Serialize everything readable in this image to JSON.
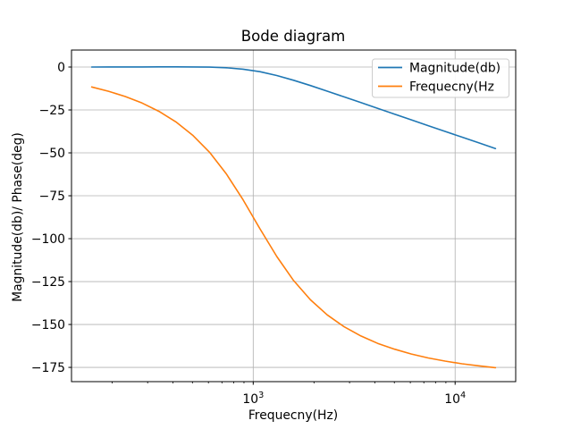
{
  "chart_data": {
    "type": "line",
    "title": "Bode diagram",
    "xlabel": "Frequecny(Hz)",
    "ylabel": "Magnitude(db)/ Phase(deg)",
    "x_scale": "log",
    "xlim": [
      125.9,
      19953
    ],
    "ylim": [
      -183.3,
      9.9
    ],
    "grid": true,
    "legend_position": "upper right",
    "x": [
      158.5,
      192.0,
      232.6,
      281.8,
      341.5,
      413.7,
      501.2,
      607.2,
      735.6,
      891.3,
      1079.8,
      1308.2,
      1584.9,
      1920.3,
      2326.3,
      2818.4,
      3414.5,
      4136.8,
      5011.9,
      6071.4,
      7356.4,
      8912.5,
      10798,
      13083,
      15849
    ],
    "series": [
      {
        "name": "Magnitude(db)",
        "color": "#1f77b4",
        "values": [
          0.03,
          0.04,
          0.06,
          0.08,
          0.1,
          0.11,
          0.08,
          -0.06,
          -0.42,
          -1.23,
          -2.71,
          -4.92,
          -7.69,
          -10.79,
          -14.06,
          -17.38,
          -20.73,
          -24.09,
          -27.44,
          -30.78,
          -34.13,
          -37.47,
          -40.81,
          -44.15,
          -47.48
        ]
      },
      {
        "name": "Frequecny(Hz",
        "color": "#ff7f0e",
        "values": [
          -11.6,
          -14.1,
          -17.2,
          -21.0,
          -25.8,
          -31.9,
          -39.7,
          -49.6,
          -62.2,
          -77.4,
          -94.2,
          -110.4,
          -124.4,
          -135.6,
          -144.4,
          -151.3,
          -156.7,
          -161.0,
          -164.4,
          -167.2,
          -169.5,
          -171.3,
          -172.9,
          -174.1,
          -175.2
        ]
      }
    ],
    "yticks": [
      0,
      -25,
      -50,
      -75,
      -100,
      -125,
      -150,
      -175
    ],
    "xticks": [
      {
        "value": 1000,
        "base": "10",
        "exp": "3"
      },
      {
        "value": 10000,
        "base": "10",
        "exp": "4"
      }
    ],
    "xticks_minor": [
      200,
      300,
      400,
      500,
      600,
      700,
      800,
      900,
      2000,
      3000,
      4000,
      5000,
      6000,
      7000,
      8000,
      9000
    ],
    "colors": {
      "grid": "#b0b0b0",
      "spine": "#000000",
      "text": "#000000",
      "background": "#ffffff"
    }
  }
}
